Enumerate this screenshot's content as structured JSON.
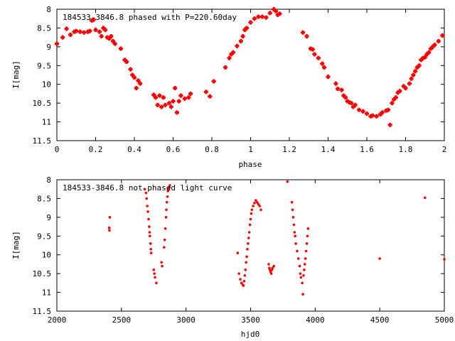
{
  "chart_data": [
    {
      "type": "scatter",
      "title": "184533-3846.8 phased with P=220.60day",
      "xlabel": "phase",
      "ylabel": "I[mag]",
      "xlim": [
        0,
        2
      ],
      "ylim": [
        11.5,
        8
      ],
      "y_inverted": true,
      "xticks": [
        "0",
        "0.2",
        "0.4",
        "0.6",
        "0.8",
        "1",
        "1.2",
        "1.4",
        "1.6",
        "1.8",
        "2"
      ],
      "xtick_values": [
        0,
        0.2,
        0.4,
        0.6,
        0.8,
        1.0,
        1.2,
        1.4,
        1.6,
        1.8,
        2.0
      ],
      "yticks": [
        "8",
        "8.5",
        "9",
        "9.5",
        "10",
        "10.5",
        "11",
        "11.5"
      ],
      "ytick_values": [
        8,
        8.5,
        9,
        9.5,
        10,
        10.5,
        11,
        11.5
      ],
      "marker_color": "#ff0000",
      "series": [
        {
          "points": [
            [
              0.0,
              8.92
            ],
            [
              0.03,
              8.75
            ],
            [
              0.05,
              8.52
            ],
            [
              0.07,
              8.68
            ],
            [
              0.09,
              8.6
            ],
            [
              0.1,
              8.58
            ],
            [
              0.12,
              8.6
            ],
            [
              0.14,
              8.62
            ],
            [
              0.16,
              8.6
            ],
            [
              0.17,
              8.58
            ],
            [
              0.18,
              8.3
            ],
            [
              0.19,
              8.28
            ],
            [
              0.2,
              8.55
            ],
            [
              0.22,
              8.6
            ],
            [
              0.23,
              8.72
            ],
            [
              0.24,
              8.5
            ],
            [
              0.25,
              8.55
            ],
            [
              0.26,
              8.75
            ],
            [
              0.27,
              8.78
            ],
            [
              0.28,
              8.72
            ],
            [
              0.29,
              8.85
            ],
            [
              0.3,
              8.92
            ],
            [
              0.33,
              9.05
            ],
            [
              0.35,
              9.35
            ],
            [
              0.36,
              9.4
            ],
            [
              0.38,
              9.6
            ],
            [
              0.39,
              9.75
            ],
            [
              0.4,
              9.82
            ],
            [
              0.41,
              10.1
            ],
            [
              0.42,
              9.9
            ],
            [
              0.43,
              9.98
            ],
            [
              0.5,
              10.28
            ],
            [
              0.51,
              10.35
            ],
            [
              0.52,
              10.55
            ],
            [
              0.53,
              10.3
            ],
            [
              0.54,
              10.6
            ],
            [
              0.55,
              10.35
            ],
            [
              0.56,
              10.55
            ],
            [
              0.58,
              10.5
            ],
            [
              0.59,
              10.6
            ],
            [
              0.6,
              10.45
            ],
            [
              0.61,
              10.1
            ],
            [
              0.62,
              10.75
            ],
            [
              0.63,
              10.45
            ],
            [
              0.64,
              10.3
            ],
            [
              0.66,
              10.38
            ],
            [
              0.68,
              10.35
            ],
            [
              0.69,
              10.25
            ],
            [
              0.77,
              10.2
            ],
            [
              0.79,
              10.32
            ],
            [
              0.81,
              9.92
            ],
            [
              0.87,
              9.55
            ],
            [
              0.89,
              9.3
            ],
            [
              0.9,
              9.2
            ],
            [
              0.91,
              9.15
            ],
            [
              0.93,
              8.98
            ],
            [
              0.95,
              8.85
            ],
            [
              0.96,
              8.72
            ],
            [
              0.97,
              8.55
            ],
            [
              0.98,
              8.5
            ],
            [
              1.0,
              8.35
            ],
            [
              1.02,
              8.25
            ],
            [
              1.04,
              8.2
            ],
            [
              1.06,
              8.2
            ],
            [
              1.08,
              8.22
            ],
            [
              1.1,
              8.1
            ],
            [
              1.12,
              8.0
            ],
            [
              1.13,
              8.05
            ],
            [
              1.14,
              8.15
            ],
            [
              1.15,
              8.12
            ],
            [
              1.27,
              8.62
            ],
            [
              1.29,
              8.72
            ],
            [
              1.31,
              9.05
            ],
            [
              1.32,
              9.07
            ],
            [
              1.33,
              9.2
            ],
            [
              1.35,
              9.3
            ],
            [
              1.37,
              9.45
            ],
            [
              1.38,
              9.55
            ],
            [
              1.4,
              9.8
            ],
            [
              1.44,
              9.98
            ],
            [
              1.45,
              10.12
            ],
            [
              1.47,
              10.15
            ],
            [
              1.48,
              10.3
            ],
            [
              1.49,
              10.35
            ],
            [
              1.5,
              10.45
            ],
            [
              1.51,
              10.48
            ],
            [
              1.52,
              10.5
            ],
            [
              1.53,
              10.6
            ],
            [
              1.54,
              10.55
            ],
            [
              1.56,
              10.68
            ],
            [
              1.58,
              10.72
            ],
            [
              1.6,
              10.78
            ],
            [
              1.62,
              10.85
            ],
            [
              1.63,
              10.83
            ],
            [
              1.65,
              10.85
            ],
            [
              1.67,
              10.8
            ],
            [
              1.68,
              10.75
            ],
            [
              1.7,
              10.7
            ],
            [
              1.71,
              10.68
            ],
            [
              1.72,
              11.08
            ],
            [
              1.73,
              10.5
            ],
            [
              1.74,
              10.4
            ],
            [
              1.75,
              10.35
            ],
            [
              1.76,
              10.22
            ],
            [
              1.77,
              10.18
            ],
            [
              1.79,
              10.05
            ],
            [
              1.8,
              10.1
            ],
            [
              1.82,
              9.98
            ],
            [
              1.83,
              9.85
            ],
            [
              1.84,
              9.75
            ],
            [
              1.85,
              9.65
            ],
            [
              1.86,
              9.55
            ],
            [
              1.87,
              9.5
            ],
            [
              1.88,
              9.35
            ],
            [
              1.89,
              9.3
            ],
            [
              1.9,
              9.28
            ],
            [
              1.91,
              9.2
            ],
            [
              1.92,
              9.15
            ],
            [
              1.93,
              9.05
            ],
            [
              1.94,
              9.0
            ],
            [
              1.95,
              8.95
            ],
            [
              1.97,
              8.85
            ],
            [
              1.99,
              8.7
            ]
          ]
        }
      ]
    },
    {
      "type": "scatter",
      "title": "184533-3846.8 not phased light curve",
      "xlabel": "hjd0",
      "ylabel": "I[mag]",
      "xlim": [
        2000,
        5000
      ],
      "ylim": [
        11.5,
        8
      ],
      "y_inverted": true,
      "xticks": [
        "2000",
        "2500",
        "3000",
        "3500",
        "4000",
        "4500",
        "5000"
      ],
      "xtick_values": [
        2000,
        2500,
        3000,
        3500,
        4000,
        4500,
        5000
      ],
      "yticks": [
        "8",
        "8.5",
        "9",
        "9.5",
        "10",
        "10.5",
        "11",
        "11.5"
      ],
      "ytick_values": [
        8,
        8.5,
        9,
        9.5,
        10,
        10.5,
        11,
        11.5
      ],
      "marker_color": "#ff0000",
      "series": [
        {
          "points": [
            [
              2405,
              9.28
            ],
            [
              2407,
              9.35
            ],
            [
              2410,
              9.0
            ],
            [
              2680,
              8.25
            ],
            [
              2690,
              8.35
            ],
            [
              2695,
              8.5
            ],
            [
              2700,
              8.7
            ],
            [
              2705,
              8.85
            ],
            [
              2710,
              9.05
            ],
            [
              2715,
              9.25
            ],
            [
              2718,
              9.4
            ],
            [
              2720,
              9.5
            ],
            [
              2725,
              9.7
            ],
            [
              2728,
              9.85
            ],
            [
              2730,
              9.95
            ],
            [
              2750,
              10.4
            ],
            [
              2755,
              10.5
            ],
            [
              2760,
              10.6
            ],
            [
              2770,
              10.75
            ],
            [
              2810,
              10.2
            ],
            [
              2815,
              10.3
            ],
            [
              2830,
              9.8
            ],
            [
              2835,
              9.6
            ],
            [
              2840,
              9.3
            ],
            [
              2845,
              9.0
            ],
            [
              2848,
              8.8
            ],
            [
              2852,
              8.6
            ],
            [
              2856,
              8.45
            ],
            [
              2860,
              8.3
            ],
            [
              2865,
              8.25
            ],
            [
              2870,
              8.2
            ],
            [
              2875,
              8.15
            ],
            [
              3400,
              9.95
            ],
            [
              3410,
              10.5
            ],
            [
              3420,
              10.65
            ],
            [
              3430,
              10.75
            ],
            [
              3440,
              10.8
            ],
            [
              3445,
              10.82
            ],
            [
              3450,
              10.7
            ],
            [
              3455,
              10.55
            ],
            [
              3460,
              10.4
            ],
            [
              3465,
              10.2
            ],
            [
              3470,
              10.05
            ],
            [
              3475,
              9.85
            ],
            [
              3480,
              9.7
            ],
            [
              3485,
              9.55
            ],
            [
              3490,
              9.4
            ],
            [
              3495,
              9.2
            ],
            [
              3500,
              9.05
            ],
            [
              3505,
              8.9
            ],
            [
              3510,
              8.8
            ],
            [
              3520,
              8.7
            ],
            [
              3530,
              8.62
            ],
            [
              3540,
              8.55
            ],
            [
              3550,
              8.6
            ],
            [
              3560,
              8.65
            ],
            [
              3570,
              8.7
            ],
            [
              3580,
              8.8
            ],
            [
              3640,
              10.25
            ],
            [
              3645,
              10.35
            ],
            [
              3650,
              10.4
            ],
            [
              3655,
              10.45
            ],
            [
              3660,
              10.5
            ],
            [
              3665,
              10.4
            ],
            [
              3670,
              10.35
            ],
            [
              3680,
              10.3
            ],
            [
              3785,
              8.05
            ],
            [
              3820,
              8.6
            ],
            [
              3825,
              8.8
            ],
            [
              3830,
              9.0
            ],
            [
              3835,
              9.2
            ],
            [
              3840,
              9.4
            ],
            [
              3845,
              9.5
            ],
            [
              3850,
              9.7
            ],
            [
              3860,
              9.9
            ],
            [
              3870,
              10.1
            ],
            [
              3880,
              10.3
            ],
            [
              3885,
              10.5
            ],
            [
              3890,
              10.6
            ],
            [
              3900,
              10.75
            ],
            [
              3905,
              11.05
            ],
            [
              3910,
              10.55
            ],
            [
              3915,
              10.4
            ],
            [
              3920,
              10.25
            ],
            [
              3925,
              10.1
            ],
            [
              3930,
              9.9
            ],
            [
              3935,
              9.7
            ],
            [
              3940,
              9.5
            ],
            [
              3945,
              9.3
            ],
            [
              4500,
              10.1
            ],
            [
              4850,
              8.48
            ],
            [
              5000,
              10.12
            ]
          ]
        }
      ]
    }
  ]
}
